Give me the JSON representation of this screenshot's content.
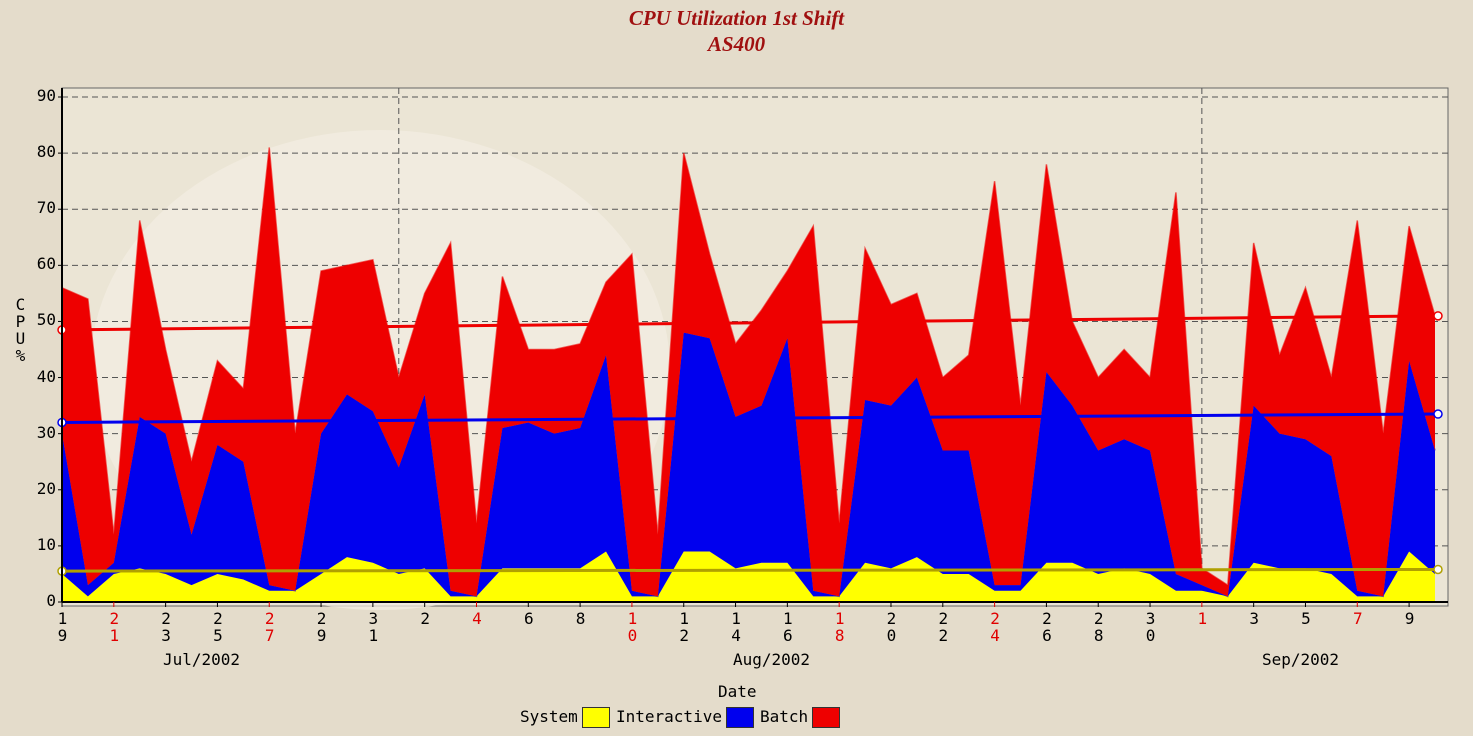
{
  "chart_data": {
    "type": "stacked_area",
    "title": "CPU Utilization 1st Shift",
    "subtitle": "AS400",
    "x_label": "Date",
    "y_label": "CPU%",
    "categories": [
      "19",
      null,
      "21",
      null,
      "23",
      null,
      "25",
      null,
      "27",
      null,
      "29",
      null,
      "31",
      null,
      "2",
      null,
      "4",
      null,
      "6",
      null,
      "8",
      null,
      "10",
      null,
      "12",
      null,
      "14",
      null,
      "16",
      null,
      "18",
      null,
      "20",
      null,
      "22",
      null,
      "24",
      null,
      "26",
      null,
      "28",
      null,
      "30",
      null,
      "1",
      null,
      "3",
      null,
      "5",
      null,
      "7",
      null,
      "9",
      null
    ],
    "tick_label_colors": [
      "#000000",
      null,
      "#e00000",
      null,
      "#000000",
      null,
      "#000000",
      null,
      "#e00000",
      null,
      "#000000",
      null,
      "#000000",
      null,
      "#000000",
      null,
      "#e00000",
      null,
      "#000000",
      null,
      "#000000",
      null,
      "#e00000",
      null,
      "#000000",
      null,
      "#000000",
      null,
      "#000000",
      null,
      "#e00000",
      null,
      "#000000",
      null,
      "#000000",
      null,
      "#e00000",
      null,
      "#000000",
      null,
      "#000000",
      null,
      "#000000",
      null,
      "#e00000",
      null,
      "#000000",
      null,
      "#000000",
      null,
      "#e00000",
      null,
      "#000000",
      null
    ],
    "month_labels": [
      "Jul/2002",
      "Aug/2002",
      "Sep/2002"
    ],
    "series": [
      {
        "name": "System",
        "color": "#ffff00",
        "trend": [
          5.5,
          5.8
        ],
        "values": [
          5,
          1,
          5,
          6,
          5,
          3,
          5,
          4,
          2,
          2,
          5,
          8,
          7,
          5,
          6,
          1,
          1,
          6,
          6,
          6,
          6,
          9,
          1,
          1,
          9,
          9,
          6,
          7,
          7,
          1,
          1,
          7,
          6,
          8,
          5,
          5,
          2,
          2,
          7,
          7,
          5,
          6,
          5,
          2,
          2,
          1,
          7,
          6,
          6,
          5,
          1,
          1,
          9,
          5
        ]
      },
      {
        "name": "Interactive",
        "color": "#0000ee",
        "trend": [
          32,
          33.5
        ],
        "values": [
          25,
          2,
          2,
          27,
          25,
          9,
          23,
          21,
          1,
          0,
          25,
          29,
          27,
          19,
          31,
          1,
          0,
          25,
          26,
          24,
          25,
          35,
          1,
          0,
          39,
          38,
          27,
          28,
          40,
          1,
          0,
          29,
          29,
          32,
          22,
          22,
          1,
          1,
          34,
          28,
          22,
          23,
          22,
          3,
          1,
          0,
          28,
          24,
          23,
          21,
          1,
          0,
          34,
          22
        ]
      },
      {
        "name": "Batch",
        "color": "#ee0000",
        "trend": [
          48.5,
          51
        ],
        "values": [
          26,
          51,
          5,
          35,
          15,
          13,
          15,
          13,
          78,
          28,
          29,
          23,
          27,
          16,
          18,
          62,
          13,
          27,
          13,
          15,
          15,
          13,
          60,
          11,
          32,
          15,
          13,
          17,
          12,
          65,
          13,
          27,
          18,
          15,
          13,
          17,
          72,
          32,
          37,
          15,
          13,
          16,
          13,
          68,
          3,
          2,
          29,
          14,
          27,
          14,
          66,
          29,
          24,
          24
        ]
      }
    ],
    "ylim": [
      0,
      90
    ],
    "yticks": [
      0,
      10,
      20,
      30,
      40,
      50,
      60,
      70,
      80,
      90
    ],
    "grid": true
  }
}
